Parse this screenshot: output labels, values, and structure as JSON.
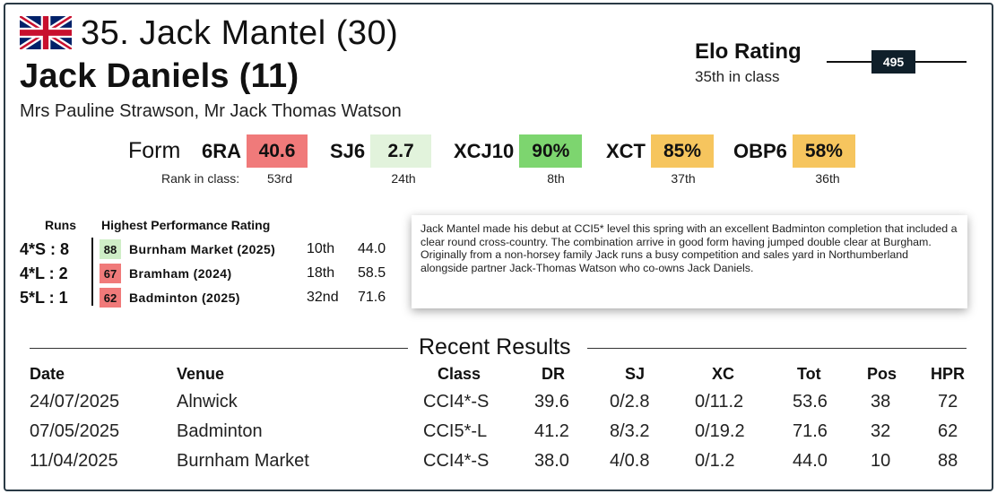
{
  "header": {
    "flag_icon": "uk-flag-icon",
    "rider": "35. Jack Mantel (30)",
    "horse": "Jack Daniels (11)",
    "owners": "Mrs Pauline Strawson, Mr Jack Thomas Watson"
  },
  "elo": {
    "title": "Elo Rating",
    "subtitle": "35th in class",
    "value": "495"
  },
  "form": {
    "label": "Form",
    "rank_label": "Rank in class:",
    "items": [
      {
        "code": "6RA",
        "value": "40.6",
        "rank": "53rd",
        "color": "#f07a7a"
      },
      {
        "code": "SJ6",
        "value": "2.7",
        "rank": "24th",
        "color": "#e2f3dc"
      },
      {
        "code": "XCJ10",
        "value": "90%",
        "rank": "8th",
        "color": "#7dd56f"
      },
      {
        "code": "XCT",
        "value": "85%",
        "rank": "37th",
        "color": "#f6c55e"
      },
      {
        "code": "OBP6",
        "value": "58%",
        "rank": "36th",
        "color": "#f6c55e"
      }
    ]
  },
  "performance": {
    "runs_header": "Runs",
    "hpr_header": "Highest Performance Rating",
    "rows": [
      {
        "level": "4*S : 8",
        "hpr": "88",
        "hpr_color": "#cfeec7",
        "event": "Burnham Market (2025)",
        "pos": "10th",
        "score": "44.0"
      },
      {
        "level": "4*L : 2",
        "hpr": "67",
        "hpr_color": "#f07a7a",
        "event": "Bramham (2024)",
        "pos": "18th",
        "score": "58.5"
      },
      {
        "level": "5*L : 1",
        "hpr": "62",
        "hpr_color": "#f07a7a",
        "event": "Badminton (2025)",
        "pos": "32nd",
        "score": "71.6"
      }
    ]
  },
  "bio": "Jack Mantel made his debut at CCI5* level this spring with an excellent Badminton completion that included a clear round cross-country. The combination arrive in good form having jumped double clear at Burgham. Originally from a non-horsey family Jack runs a busy competition and sales yard in Northumberland alongside partner Jack-Thomas Watson who co-owns Jack Daniels.",
  "results": {
    "title": "Recent Results",
    "headers": {
      "date": "Date",
      "venue": "Venue",
      "class": "Class",
      "dr": "DR",
      "sj": "SJ",
      "xc": "XC",
      "tot": "Tot",
      "pos": "Pos",
      "hpr": "HPR"
    },
    "rows": [
      {
        "date": "24/07/2025",
        "venue": "Alnwick",
        "class": "CCI4*-S",
        "dr": "39.6",
        "sj": "0/2.8",
        "xc": "0/11.2",
        "tot": "53.6",
        "pos": "38",
        "hpr": "72"
      },
      {
        "date": "07/05/2025",
        "venue": "Badminton",
        "class": "CCI5*-L",
        "dr": "41.2",
        "sj": "8/3.2",
        "xc": "0/19.2",
        "tot": "71.6",
        "pos": "32",
        "hpr": "62"
      },
      {
        "date": "11/04/2025",
        "venue": "Burnham Market",
        "class": "CCI4*-S",
        "dr": "38.0",
        "sj": "4/0.8",
        "xc": "0/1.2",
        "tot": "44.0",
        "pos": "10",
        "hpr": "88"
      }
    ]
  }
}
